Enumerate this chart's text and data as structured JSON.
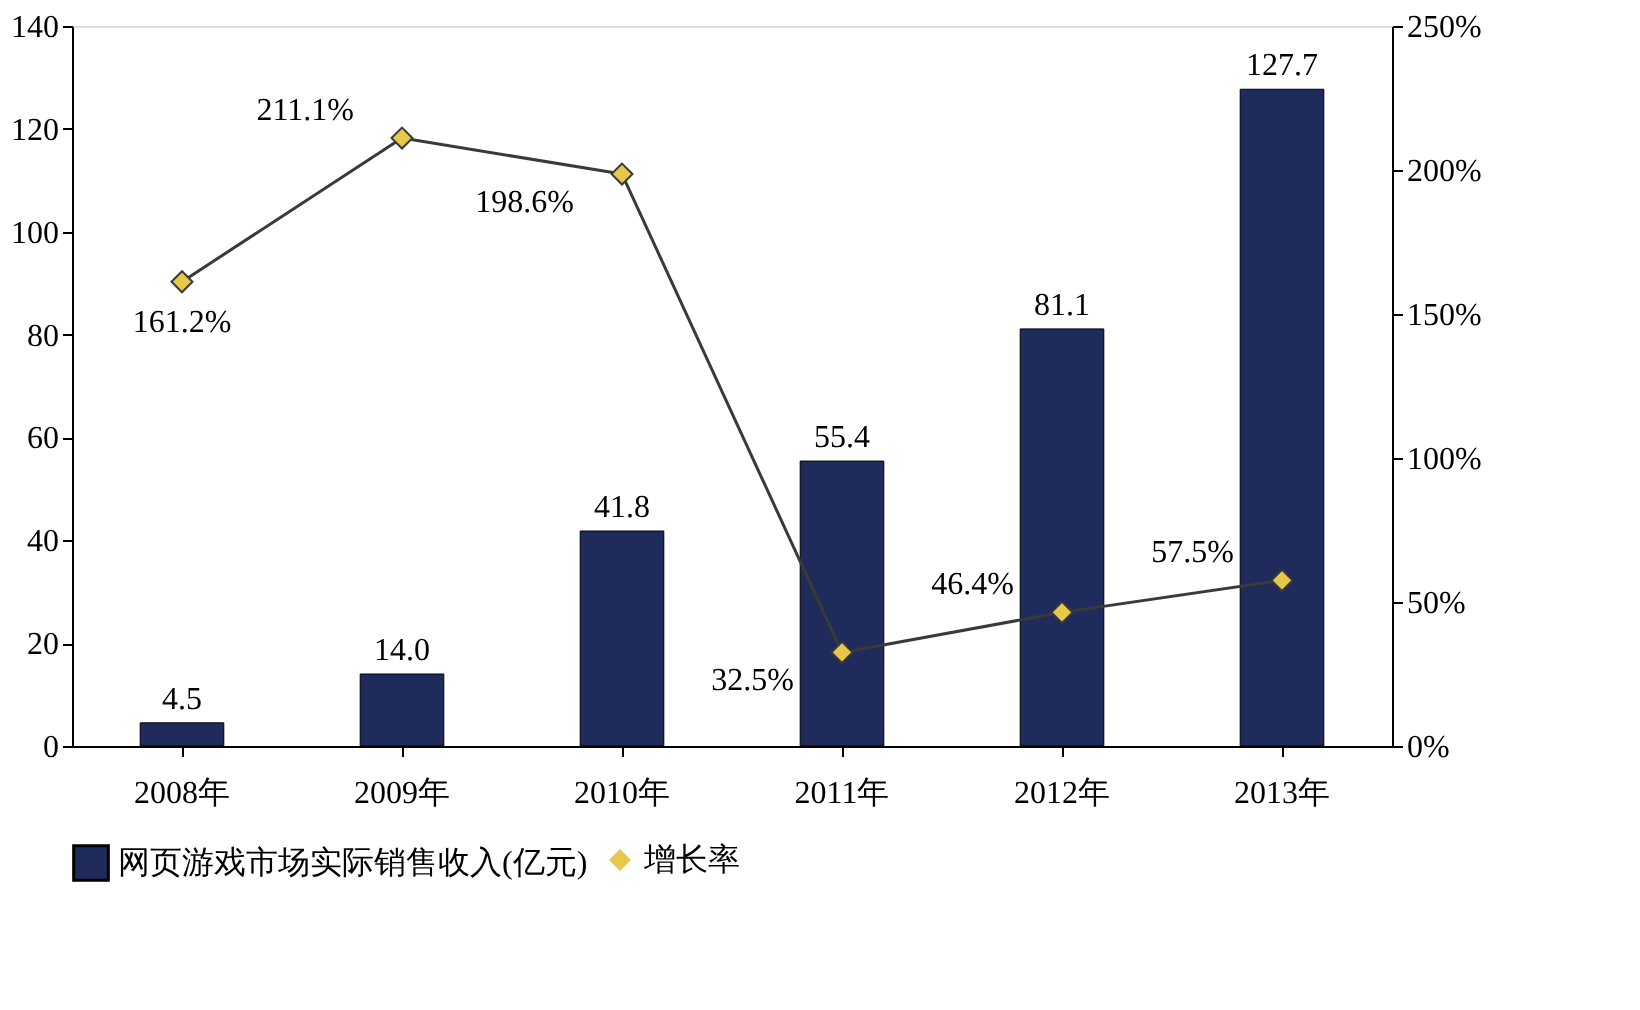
{
  "chart_data": {
    "type": "bar",
    "categories": [
      "2008年",
      "2009年",
      "2010年",
      "2011年",
      "2012年",
      "2013年"
    ],
    "series": [
      {
        "name": "网页游戏市场实际销售收入(亿元)",
        "color": "#1f2b5b",
        "values": [
          4.5,
          14.0,
          41.8,
          55.4,
          81.1,
          127.7
        ],
        "value_labels": [
          "4.5",
          "14.0",
          "41.8",
          "55.4",
          "81.1",
          "127.7"
        ]
      },
      {
        "name": "增长率",
        "type": "line",
        "axis": "y2",
        "color": "#3a3a3a",
        "marker": "diamond",
        "values": [
          161.2,
          211.1,
          198.6,
          32.5,
          46.4,
          57.5
        ],
        "value_labels": [
          "161.2%",
          "211.1%",
          "198.6%",
          "32.5%",
          "46.4%",
          "57.5%"
        ]
      }
    ],
    "ylim": [
      0,
      140
    ],
    "yticks": [
      0,
      20,
      40,
      60,
      80,
      100,
      120,
      140
    ],
    "y2lim": [
      0,
      250
    ],
    "y2ticks": [
      {
        "value": 0,
        "label": "0%"
      },
      {
        "value": 50,
        "label": "50%"
      },
      {
        "value": 100,
        "label": "100%"
      },
      {
        "value": 150,
        "label": "150%"
      },
      {
        "value": 200,
        "label": "200%"
      },
      {
        "value": 250,
        "label": "250%"
      }
    ],
    "grid": false,
    "legend": "bottom"
  }
}
